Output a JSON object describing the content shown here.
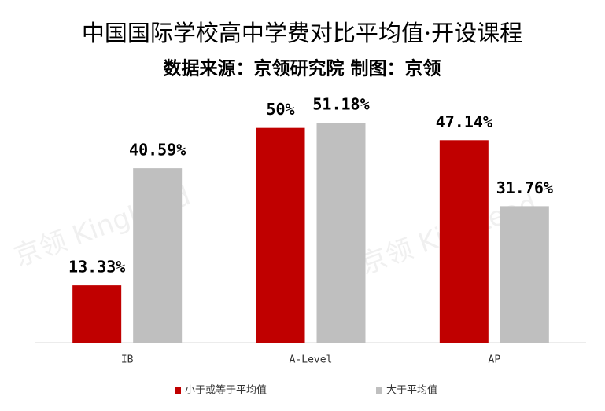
{
  "chart_data": {
    "type": "bar",
    "title": "中国国际学校高中学费对比平均值·开设课程",
    "subtitle": "数据来源：京领研究院 制图：京领",
    "watermark": "京领 KingLead",
    "categories": [
      "IB",
      "A-Level",
      "AP"
    ],
    "series": [
      {
        "name": "小于或等于平均值",
        "color": "#c00000",
        "values": [
          13.33,
          50,
          47.14
        ],
        "value_labels": [
          "13.33%",
          "50%",
          "47.14%"
        ]
      },
      {
        "name": "大于平均值",
        "color": "#bfbfbf",
        "values": [
          40.59,
          51.18,
          31.76
        ],
        "value_labels": [
          "40.59%",
          "51.18%",
          "31.76%"
        ]
      }
    ],
    "ylim": [
      0,
      60
    ],
    "legend": "bottom"
  }
}
